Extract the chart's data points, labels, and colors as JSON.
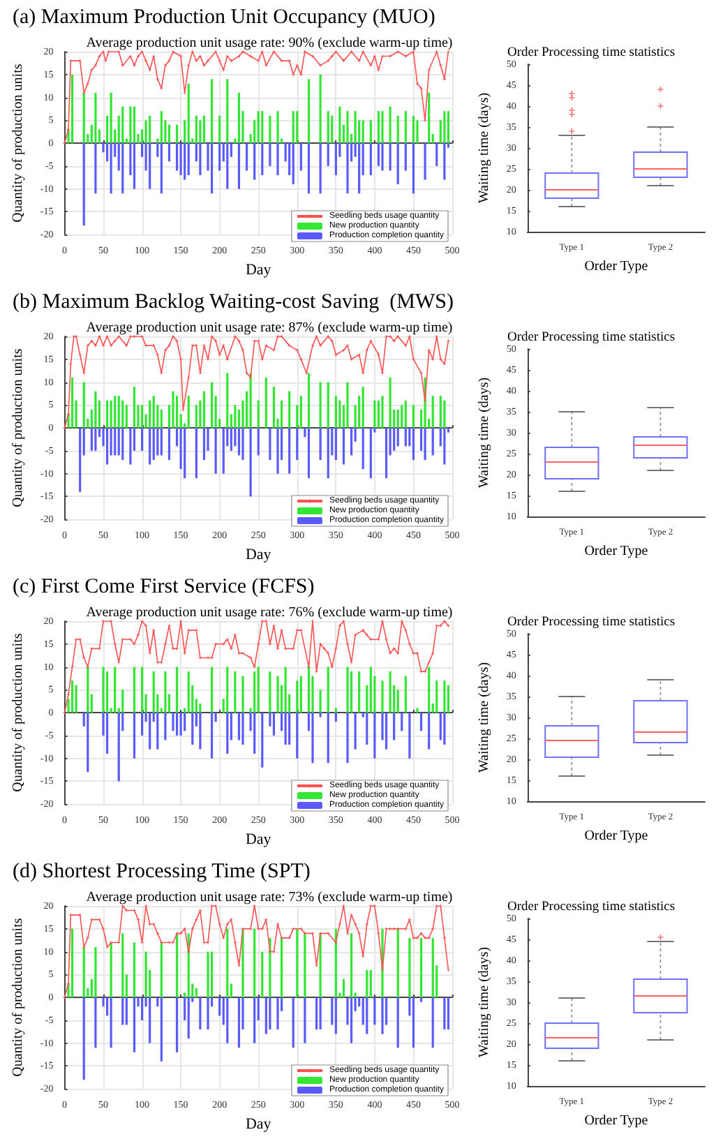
{
  "chart_data": [
    {
      "type": "bar",
      "title": "(a) Maximum Production Unit Occupancy (MUO)",
      "subtitle": "Average production unit usage rate: 90% (exclude warm-up time)",
      "xlabel": "Day",
      "ylabel": "Quantity of production units",
      "xlim": [
        0,
        500
      ],
      "xticks": [
        0,
        50,
        100,
        150,
        200,
        250,
        300,
        350,
        400,
        450,
        500
      ],
      "ylim": [
        -20,
        20
      ],
      "yticks": [
        -20,
        -15,
        -10,
        -5,
        0,
        5,
        10,
        15,
        20
      ],
      "grid": true,
      "legend": "bottom right",
      "marker": "star",
      "series": [
        {
          "type": "line",
          "name": "Seedling beds usage quantity",
          "color": "#ff5050",
          "x": [
            0,
            5,
            8,
            20,
            25,
            30,
            35,
            40,
            45,
            50,
            53,
            57,
            70,
            75,
            85,
            90,
            95,
            100,
            105,
            110,
            115,
            120,
            125,
            130,
            135,
            140,
            150,
            155,
            160,
            165,
            170,
            175,
            180,
            185,
            195,
            200,
            205,
            210,
            215,
            225,
            230,
            240,
            250,
            255,
            260,
            270,
            280,
            290,
            295,
            300,
            305,
            310,
            320,
            330,
            340,
            345,
            350,
            360,
            370,
            380,
            385,
            395,
            400,
            405,
            410,
            420,
            430,
            440,
            450,
            455,
            460,
            465,
            470,
            480,
            485,
            490,
            495
          ],
          "values": [
            0,
            3,
            18,
            18,
            11,
            13,
            16,
            17,
            19,
            20,
            18,
            20,
            20,
            17,
            19,
            17,
            19,
            20,
            18,
            16,
            19,
            14,
            12,
            17,
            18,
            20,
            19,
            11,
            17,
            20,
            18,
            19,
            17,
            18,
            20,
            18,
            16,
            19,
            18,
            19,
            20,
            19,
            18,
            20,
            17,
            20,
            18,
            18,
            15,
            17,
            15,
            20,
            19,
            17,
            18,
            19,
            20,
            18,
            20,
            18,
            20,
            17,
            19,
            16,
            19,
            19,
            20,
            19,
            20,
            13,
            12,
            5,
            16,
            20,
            17,
            14,
            20
          ]
        },
        {
          "type": "bar",
          "name": "New production quantity",
          "color": "#33e633",
          "x": [
            5,
            10,
            25,
            30,
            35,
            40,
            45,
            55,
            60,
            65,
            70,
            75,
            80,
            85,
            90,
            95,
            100,
            105,
            110,
            120,
            125,
            130,
            135,
            145,
            155,
            160,
            165,
            170,
            175,
            180,
            190,
            200,
            210,
            220,
            225,
            230,
            240,
            245,
            250,
            255,
            265,
            275,
            280,
            295,
            300,
            315,
            330,
            340,
            345,
            355,
            360,
            365,
            370,
            375,
            380,
            385,
            395,
            405,
            410,
            420,
            430,
            440,
            450,
            455,
            470,
            475,
            485,
            490,
            495
          ],
          "values": [
            3,
            15,
            11,
            2,
            4,
            11,
            3,
            6,
            11,
            3,
            6,
            8,
            1,
            8,
            8,
            2,
            3,
            5,
            6,
            1,
            7,
            5,
            4,
            4,
            5,
            13,
            1,
            6,
            5,
            6,
            14,
            6,
            14,
            1,
            11,
            7,
            2,
            5,
            7,
            7,
            6,
            7,
            1,
            7,
            7,
            14,
            15,
            7,
            6,
            8,
            4,
            7,
            2,
            7,
            5,
            5,
            5,
            7,
            7,
            8,
            6,
            7,
            6,
            5,
            11,
            2,
            5,
            7,
            7
          ]
        },
        {
          "type": "bar",
          "name": "Production completion quantity",
          "color": "#5a5aff",
          "x": [
            25,
            40,
            50,
            55,
            60,
            65,
            70,
            75,
            85,
            90,
            100,
            105,
            110,
            120,
            125,
            135,
            145,
            150,
            155,
            160,
            170,
            175,
            185,
            190,
            200,
            205,
            210,
            215,
            225,
            235,
            245,
            255,
            265,
            275,
            285,
            290,
            295,
            305,
            315,
            330,
            340,
            350,
            355,
            365,
            370,
            375,
            380,
            385,
            395,
            405,
            410,
            420,
            430,
            440,
            450,
            465,
            480,
            490,
            495
          ],
          "values": [
            -18,
            -11,
            -2,
            -4,
            -11,
            -3,
            -6,
            -11,
            -7,
            -10,
            -3,
            -6,
            -10,
            -3,
            -11,
            -4,
            -6,
            -7,
            -8,
            -7,
            -4,
            -7,
            -6,
            -11,
            -6,
            -4,
            -10,
            -3,
            -10,
            -6,
            -8,
            -7,
            -5,
            -7,
            -4,
            -7,
            -9,
            -6,
            -11,
            -11,
            -5,
            -7,
            -3,
            -11,
            -4,
            -3,
            -11,
            -7,
            -7,
            -5,
            -6,
            -6,
            -9,
            -6,
            -11,
            -8,
            -5,
            -8,
            -1
          ]
        }
      ]
    },
    {
      "type": "box",
      "title": "Order Processing time statistics",
      "xlabel": "Order Type",
      "ylabel": "Waiting time (days)",
      "categories": [
        "Type 1",
        "Type 2"
      ],
      "ylim": [
        10,
        50
      ],
      "yticks": [
        10,
        15,
        20,
        25,
        30,
        35,
        40,
        45,
        50
      ],
      "color": "#7070ff",
      "marker": "cross",
      "boxes": [
        {
          "low": 16,
          "q1": 18,
          "median": 20,
          "q3": 24,
          "high": 33,
          "outliers": [
            34,
            38,
            39,
            42,
            43
          ]
        },
        {
          "low": 21,
          "q1": 23,
          "median": 25,
          "q3": 29,
          "high": 35,
          "outliers": [
            40,
            44
          ]
        }
      ]
    },
    {
      "type": "bar",
      "title": "(b) Maximum Backlog Waiting-cost Saving  (MWS)",
      "subtitle": "Average production unit usage rate: 87% (exclude warm-up time)",
      "xlabel": "Day",
      "ylabel": "Quantity of production units",
      "xlim": [
        0,
        500
      ],
      "xticks": [
        0,
        50,
        100,
        150,
        200,
        250,
        300,
        350,
        400,
        450,
        500
      ],
      "ylim": [
        -20,
        20
      ],
      "yticks": [
        -20,
        -15,
        -10,
        -5,
        0,
        5,
        10,
        15,
        20
      ],
      "grid": true,
      "legend": "bottom right",
      "marker": "star",
      "series": [
        {
          "type": "line",
          "name": "Seedling beds usage quantity",
          "color": "#ff5050",
          "x": [
            0,
            5,
            8,
            12,
            15,
            20,
            25,
            30,
            35,
            40,
            45,
            50,
            55,
            60,
            65,
            70,
            80,
            85,
            90,
            100,
            105,
            115,
            120,
            125,
            130,
            135,
            140,
            145,
            150,
            153,
            160,
            165,
            170,
            175,
            180,
            185,
            190,
            195,
            200,
            205,
            210,
            220,
            225,
            230,
            235,
            240,
            245,
            250,
            255,
            260,
            270,
            275,
            280,
            290,
            300,
            305,
            312,
            320,
            325,
            330,
            340,
            345,
            350,
            360,
            365,
            370,
            380,
            385,
            390,
            395,
            405,
            410,
            415,
            420,
            425,
            430,
            440,
            445,
            450,
            460,
            465,
            470,
            475,
            480,
            485,
            490,
            495
          ],
          "values": [
            0,
            3,
            14,
            20,
            20,
            16,
            12,
            18,
            19,
            18,
            20,
            18,
            20,
            18,
            19,
            20,
            18,
            20,
            20,
            20,
            18,
            18,
            16,
            12,
            17,
            18,
            20,
            19,
            15,
            4,
            11,
            18,
            18,
            12,
            18,
            15,
            20,
            19,
            16,
            18,
            15,
            20,
            19,
            17,
            12,
            11,
            19,
            19,
            15,
            18,
            17,
            20,
            20,
            18,
            17,
            15,
            12,
            18,
            20,
            18,
            20,
            19,
            16,
            17,
            18,
            15,
            16,
            12,
            17,
            19,
            16,
            12,
            20,
            20,
            19,
            20,
            18,
            20,
            15,
            12,
            6,
            17,
            15,
            20,
            15,
            14,
            19
          ]
        },
        {
          "type": "bar",
          "name": "New production quantity",
          "color": "#33e633",
          "x": [
            5,
            10,
            15,
            25,
            30,
            35,
            40,
            45,
            55,
            60,
            65,
            70,
            75,
            80,
            90,
            95,
            100,
            105,
            110,
            115,
            120,
            125,
            135,
            140,
            145,
            150,
            155,
            160,
            170,
            175,
            180,
            190,
            195,
            200,
            210,
            215,
            220,
            225,
            230,
            235,
            240,
            250,
            260,
            270,
            275,
            280,
            290,
            300,
            305,
            315,
            330,
            340,
            350,
            355,
            360,
            365,
            375,
            380,
            385,
            400,
            405,
            410,
            420,
            425,
            430,
            435,
            440,
            450,
            460,
            465,
            470,
            475,
            485,
            490
          ],
          "values": [
            3,
            11,
            6,
            10,
            2,
            4,
            8,
            6,
            6,
            6,
            7,
            7,
            6,
            5,
            9,
            5,
            5,
            3,
            6,
            7,
            5,
            4,
            5,
            8,
            7,
            3,
            1,
            7,
            5,
            6,
            8,
            10,
            7,
            2,
            12,
            3,
            5,
            4,
            6,
            8,
            12,
            6,
            11,
            9,
            2,
            6,
            8,
            5,
            7,
            12,
            10,
            10,
            7,
            6,
            5,
            10,
            5,
            7,
            9,
            6,
            6,
            7,
            11,
            4,
            4,
            5,
            6,
            5,
            4,
            11,
            2,
            7,
            7,
            6
          ]
        },
        {
          "type": "bar",
          "name": "Production completion quantity",
          "color": "#5a5aff",
          "x": [
            20,
            25,
            35,
            40,
            45,
            50,
            55,
            60,
            65,
            70,
            75,
            85,
            90,
            100,
            110,
            115,
            120,
            125,
            135,
            145,
            150,
            155,
            170,
            180,
            185,
            195,
            205,
            210,
            215,
            220,
            225,
            230,
            240,
            250,
            265,
            275,
            280,
            290,
            300,
            310,
            315,
            330,
            340,
            345,
            350,
            360,
            370,
            375,
            385,
            395,
            400,
            415,
            420,
            425,
            430,
            440,
            445,
            450,
            460,
            465,
            475,
            485,
            490,
            495
          ],
          "values": [
            -14,
            -6,
            -5,
            -5,
            -2,
            -4,
            -8,
            -6,
            -6,
            -6,
            -7,
            -8,
            -5,
            -5,
            -8,
            -7,
            -6,
            -6,
            -7,
            -4,
            -9,
            -11,
            -11,
            -7,
            -5,
            -10,
            -10,
            -4,
            -5,
            -4,
            -6,
            -7,
            -15,
            -6,
            -7,
            -10,
            -7,
            -10,
            -7,
            -2,
            -11,
            -7,
            -11,
            -6,
            -7,
            -8,
            -6,
            -3,
            -9,
            -11,
            -1,
            -11,
            -6,
            -5,
            -4,
            -4,
            -4,
            -7,
            -5,
            -7,
            -6,
            -4,
            -8,
            -1
          ]
        }
      ]
    },
    {
      "type": "box",
      "title": "Order Processing time statistics",
      "xlabel": "Order Type",
      "ylabel": "Waiting time (days)",
      "categories": [
        "Type 1",
        "Type 2"
      ],
      "ylim": [
        10,
        50
      ],
      "yticks": [
        10,
        15,
        20,
        25,
        30,
        35,
        40,
        45,
        50
      ],
      "color": "#7070ff",
      "boxes": [
        {
          "low": 16,
          "q1": 19,
          "median": 23,
          "q3": 26.5,
          "high": 35
        },
        {
          "low": 21,
          "q1": 24,
          "median": 27,
          "q3": 29,
          "high": 36
        }
      ]
    },
    {
      "type": "bar",
      "title": "(c) First Come First Service (FCFS)",
      "subtitle": "Average production unit usage rate: 76% (exclude warm-up time)",
      "xlabel": "Day",
      "ylabel": "Quantity of production units",
      "xlim": [
        0,
        500
      ],
      "xticks": [
        0,
        50,
        100,
        150,
        200,
        250,
        300,
        350,
        400,
        450,
        500
      ],
      "ylim": [
        -20,
        20
      ],
      "yticks": [
        -20,
        -15,
        -10,
        -5,
        0,
        5,
        10,
        15,
        20
      ],
      "grid": true,
      "legend": "bottom right",
      "marker": "star",
      "series": [
        {
          "type": "line",
          "name": "Seedling beds usage quantity",
          "color": "#ff5050",
          "x": [
            0,
            5,
            10,
            15,
            20,
            25,
            30,
            35,
            45,
            50,
            60,
            65,
            70,
            75,
            85,
            90,
            95,
            100,
            105,
            110,
            115,
            120,
            125,
            130,
            135,
            140,
            145,
            150,
            155,
            160,
            170,
            175,
            185,
            190,
            195,
            205,
            210,
            215,
            220,
            225,
            230,
            240,
            245,
            250,
            255,
            260,
            265,
            270,
            275,
            280,
            285,
            295,
            300,
            305,
            315,
            320,
            325,
            330,
            335,
            340,
            345,
            350,
            355,
            360,
            365,
            370,
            375,
            385,
            390,
            395,
            405,
            410,
            415,
            420,
            425,
            430,
            435,
            440,
            445,
            450,
            455,
            460,
            465,
            470,
            475,
            480,
            485,
            490,
            495
          ],
          "values": [
            0,
            4,
            10,
            16,
            16,
            12,
            10,
            14,
            14,
            20,
            20,
            15,
            11,
            16,
            16,
            15,
            17,
            20,
            19,
            13,
            18,
            11,
            11,
            15,
            19,
            14,
            14,
            20,
            13,
            18,
            18,
            12,
            12,
            12,
            15,
            15,
            16,
            14,
            17,
            13,
            13,
            12,
            10,
            15,
            20,
            20,
            15,
            19,
            14,
            18,
            14,
            14,
            18,
            18,
            10,
            20,
            9,
            15,
            14,
            13,
            10,
            14,
            19,
            20,
            15,
            11,
            17,
            18,
            17,
            16,
            16,
            20,
            16,
            13,
            14,
            13,
            20,
            18,
            15,
            13,
            13,
            9,
            9,
            11,
            13,
            19,
            19,
            20,
            19
          ]
        },
        {
          "type": "bar",
          "name": "New production quantity",
          "color": "#33e633",
          "x": [
            5,
            10,
            15,
            30,
            35,
            50,
            55,
            60,
            65,
            70,
            75,
            90,
            100,
            105,
            115,
            120,
            125,
            130,
            135,
            145,
            155,
            160,
            165,
            170,
            175,
            190,
            205,
            210,
            220,
            230,
            240,
            245,
            250,
            265,
            275,
            280,
            285,
            290,
            300,
            305,
            315,
            320,
            330,
            340,
            350,
            365,
            370,
            380,
            390,
            395,
            400,
            410,
            420,
            425,
            430,
            440,
            455,
            470,
            475,
            480,
            490,
            495
          ],
          "values": [
            3,
            7,
            6,
            10,
            4,
            10,
            9,
            1,
            10,
            1,
            5,
            10,
            10,
            4,
            9,
            4,
            1,
            9,
            4,
            10,
            1,
            9,
            6,
            3,
            2,
            10,
            3,
            10,
            9,
            8,
            1,
            9,
            10,
            9,
            8,
            6,
            10,
            4,
            7,
            8,
            10,
            8,
            5,
            10,
            1,
            10,
            9,
            9,
            6,
            10,
            8,
            7,
            9,
            6,
            5,
            8,
            1,
            10,
            2,
            7,
            7,
            6
          ]
        },
        {
          "type": "bar",
          "name": "Production completion quantity",
          "color": "#5a5aff",
          "x": [
            25,
            30,
            50,
            55,
            70,
            75,
            90,
            100,
            105,
            110,
            115,
            120,
            130,
            140,
            145,
            150,
            155,
            165,
            170,
            175,
            190,
            195,
            210,
            215,
            225,
            230,
            240,
            245,
            255,
            265,
            270,
            280,
            285,
            290,
            300,
            315,
            320,
            330,
            340,
            350,
            365,
            375,
            385,
            390,
            400,
            410,
            415,
            425,
            435,
            445,
            460,
            470,
            485,
            490
          ],
          "values": [
            -3,
            -13,
            -5,
            -9,
            -15,
            -4,
            -10,
            -5,
            -2,
            -8,
            -2,
            -8,
            -6,
            -4,
            -5,
            -5,
            -4,
            -7,
            -3,
            -8,
            -10,
            -2,
            -9,
            -6,
            -6,
            -7,
            -4,
            -9,
            -12,
            -3,
            -5,
            -4,
            -7,
            -7,
            -10,
            -4,
            -11,
            -1,
            -11,
            -2,
            -11,
            -8,
            -1,
            -7,
            -10,
            -6,
            -8,
            -6,
            -4,
            -10,
            -4,
            -8,
            -6,
            -7
          ]
        }
      ]
    },
    {
      "type": "box",
      "title": "Order Processing time statistics",
      "xlabel": "Order Type",
      "ylabel": "Waiting time (days)",
      "categories": [
        "Type 1",
        "Type 2"
      ],
      "ylim": [
        10,
        50
      ],
      "yticks": [
        10,
        15,
        20,
        25,
        30,
        35,
        40,
        45,
        50
      ],
      "color": "#7070ff",
      "boxes": [
        {
          "low": 16,
          "q1": 20.5,
          "median": 24.5,
          "q3": 28,
          "high": 35
        },
        {
          "low": 21,
          "q1": 24,
          "median": 26.5,
          "q3": 34,
          "high": 39
        }
      ]
    },
    {
      "type": "bar",
      "title": "(d) Shortest Processing Time (SPT)",
      "subtitle": "Average production unit usage rate: 73% (exclude warm-up time)",
      "xlabel": "Day",
      "ylabel": "Quantity of production units",
      "xlim": [
        0,
        500
      ],
      "xticks": [
        0,
        50,
        100,
        150,
        200,
        250,
        300,
        350,
        400,
        450,
        500
      ],
      "ylim": [
        -20,
        20
      ],
      "yticks": [
        -20,
        -15,
        -10,
        -5,
        0,
        5,
        10,
        15,
        20
      ],
      "grid": true,
      "legend": "bottom right",
      "marker": "star",
      "series": [
        {
          "type": "line",
          "name": "Seedling beds usage quantity",
          "color": "#ff5050",
          "x": [
            0,
            5,
            8,
            20,
            25,
            30,
            35,
            45,
            50,
            55,
            60,
            70,
            75,
            80,
            90,
            95,
            100,
            105,
            110,
            115,
            120,
            125,
            135,
            140,
            145,
            150,
            155,
            160,
            165,
            170,
            175,
            180,
            185,
            190,
            195,
            200,
            205,
            210,
            215,
            220,
            225,
            230,
            240,
            245,
            250,
            255,
            260,
            265,
            270,
            275,
            280,
            290,
            295,
            305,
            310,
            320,
            325,
            330,
            340,
            350,
            355,
            360,
            365,
            370,
            375,
            380,
            385,
            390,
            395,
            400,
            405,
            410,
            415,
            420,
            425,
            430,
            440,
            445,
            450,
            455,
            460,
            465,
            470,
            475,
            480,
            485,
            490,
            495
          ],
          "values": [
            0,
            3,
            18,
            18,
            11,
            13,
            17,
            17,
            15,
            11,
            12,
            12,
            20,
            19,
            19,
            17,
            12,
            20,
            16,
            16,
            14,
            12,
            12,
            12,
            14,
            14,
            15,
            10,
            15,
            17,
            19,
            12,
            12,
            20,
            20,
            16,
            13,
            16,
            17,
            12,
            7,
            15,
            15,
            20,
            15,
            15,
            17,
            10,
            10,
            16,
            13,
            13,
            15,
            15,
            14,
            14,
            7,
            14,
            14,
            12,
            16,
            20,
            14,
            18,
            16,
            14,
            9,
            16,
            20,
            20,
            14,
            6,
            15,
            15,
            15,
            15,
            15,
            17,
            13,
            13,
            14,
            13,
            13,
            15,
            20,
            20,
            13,
            6
          ]
        },
        {
          "type": "bar",
          "name": "New production quantity",
          "color": "#33e633",
          "x": [
            5,
            10,
            25,
            30,
            35,
            40,
            60,
            75,
            80,
            90,
            105,
            110,
            125,
            145,
            155,
            160,
            165,
            170,
            185,
            190,
            210,
            215,
            230,
            245,
            255,
            265,
            280,
            300,
            310,
            330,
            350,
            355,
            360,
            370,
            375,
            390,
            395,
            410,
            430,
            445,
            460,
            475,
            480
          ],
          "values": [
            3,
            15,
            11,
            2,
            4,
            11,
            12,
            14,
            5,
            12,
            10,
            6,
            12,
            14,
            1,
            14,
            3,
            2,
            10,
            10,
            15,
            3,
            15,
            15,
            10,
            13,
            13,
            15,
            14,
            14,
            15,
            1,
            4,
            14,
            1,
            6,
            6,
            15,
            15,
            13,
            13,
            13,
            7
          ]
        },
        {
          "type": "bar",
          "name": "Production completion quantity",
          "color": "#5a5aff",
          "x": [
            25,
            40,
            50,
            55,
            60,
            75,
            80,
            90,
            95,
            100,
            105,
            110,
            120,
            125,
            145,
            155,
            160,
            165,
            175,
            185,
            190,
            200,
            205,
            210,
            225,
            230,
            245,
            250,
            260,
            265,
            275,
            280,
            295,
            310,
            325,
            330,
            345,
            350,
            365,
            370,
            375,
            380,
            385,
            390,
            400,
            410,
            415,
            430,
            445,
            450,
            460,
            475,
            490,
            495
          ],
          "values": [
            -18,
            -11,
            -2,
            -4,
            -11,
            -6,
            -6,
            -12,
            -2,
            -5,
            -2,
            -10,
            -2,
            -14,
            -12,
            -5,
            -9,
            -1,
            -7,
            -7,
            -2,
            -4,
            -6,
            -10,
            -11,
            -7,
            -10,
            -5,
            -8,
            -7,
            -7,
            -3,
            -11,
            -10,
            -7,
            -7,
            -6,
            -8,
            -6,
            -10,
            -3,
            -2,
            -6,
            -8,
            -6,
            -8,
            -6,
            -11,
            -4,
            -11,
            -1,
            -11,
            -7,
            -7
          ]
        }
      ]
    },
    {
      "type": "box",
      "title": "Order Processing time statistics",
      "xlabel": "Order Type",
      "ylabel": "Waiting time (days)",
      "categories": [
        "Type 1",
        "Type 2"
      ],
      "ylim": [
        10,
        50
      ],
      "yticks": [
        10,
        15,
        20,
        25,
        30,
        35,
        40,
        45,
        50
      ],
      "color": "#7070ff",
      "marker": "cross",
      "boxes": [
        {
          "low": 16,
          "q1": 19,
          "median": 21.5,
          "q3": 25,
          "high": 31
        },
        {
          "low": 21,
          "q1": 27.5,
          "median": 31.5,
          "q3": 35.5,
          "high": 44.5,
          "outliers": [
            45.5
          ]
        }
      ]
    }
  ]
}
